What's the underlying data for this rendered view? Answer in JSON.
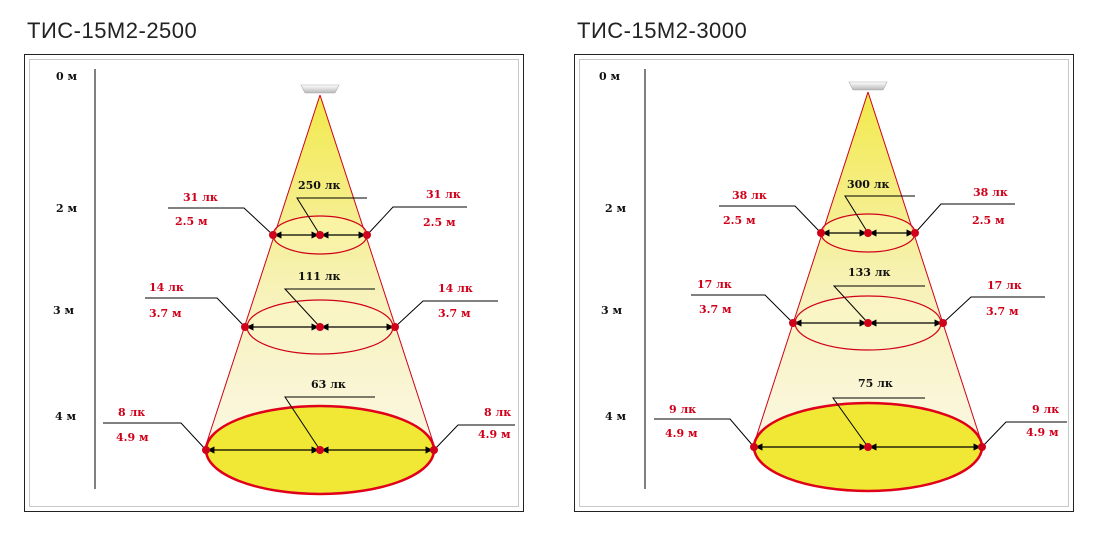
{
  "panels": [
    {
      "title": "ТИС-15М2-2500",
      "heights": [
        "0 м",
        "2 м",
        "3 м",
        "4 м"
      ],
      "levels": [
        {
          "center_lux": "250 лк",
          "edge_lux": "31 лк",
          "diameter": "2.5 м"
        },
        {
          "center_lux": "111 лк",
          "edge_lux": "14 лк",
          "diameter": "3.7 м"
        },
        {
          "center_lux": "63 лк",
          "edge_lux": "8 лк",
          "diameter": "4.9 м"
        }
      ]
    },
    {
      "title": "ТИС-15М2-3000",
      "heights": [
        "0 м",
        "2 м",
        "3 м",
        "4 м"
      ],
      "levels": [
        {
          "center_lux": "300 лк",
          "edge_lux": "38 лк",
          "diameter": "2.5 м"
        },
        {
          "center_lux": "133 лк",
          "edge_lux": "17 лк",
          "diameter": "3.7 м"
        },
        {
          "center_lux": "75 лк",
          "edge_lux": "9 лк",
          "diameter": "4.9 м"
        }
      ]
    }
  ],
  "colors": {
    "red": "#d0001a",
    "beam_top": "#f2e94a",
    "beam_bottom": "#fbf7e2",
    "spot": "#f0e835"
  }
}
